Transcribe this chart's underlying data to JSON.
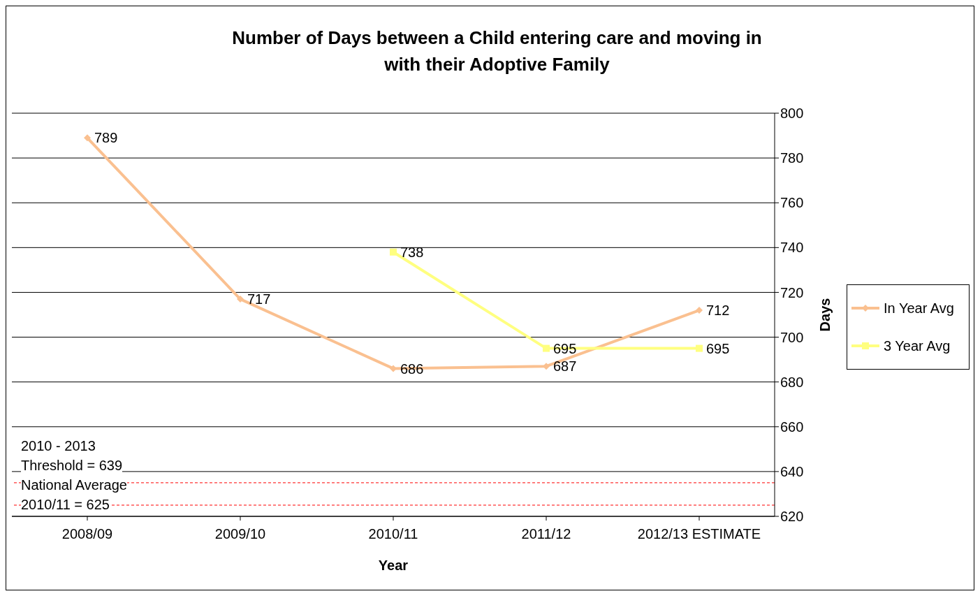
{
  "chart_data": {
    "type": "line",
    "title": "Number of Days between a Child entering care and moving in with their Adoptive Family",
    "xlabel": "Year",
    "ylabel": "Days",
    "categories": [
      "2008/09",
      "2009/10",
      "2010/11",
      "2011/12",
      "2012/13 ESTIMATE"
    ],
    "series": [
      {
        "name": "In Year Avg",
        "color": "#fac090",
        "values": [
          789,
          717,
          686,
          687,
          712
        ],
        "marker": "diamond"
      },
      {
        "name": "3 Year Avg",
        "color": "#ffff80",
        "values": [
          null,
          null,
          738,
          695,
          695
        ],
        "marker": "square"
      }
    ],
    "ylim": [
      620,
      800
    ],
    "yticks": [
      620,
      640,
      660,
      680,
      700,
      720,
      740,
      760,
      780,
      800
    ],
    "grid": "y",
    "legend": "right",
    "data_labels": true,
    "ref_lines": [
      {
        "axis": "y",
        "value": 635,
        "color": "#ff0000",
        "line_style": "dashed"
      },
      {
        "axis": "y",
        "value": 625,
        "color": "#ff0000",
        "line_style": "dashed"
      }
    ],
    "annotations": [
      "2010 - 2013\nThreshold = 639\nNational Average\n2010/11 = 625"
    ]
  }
}
